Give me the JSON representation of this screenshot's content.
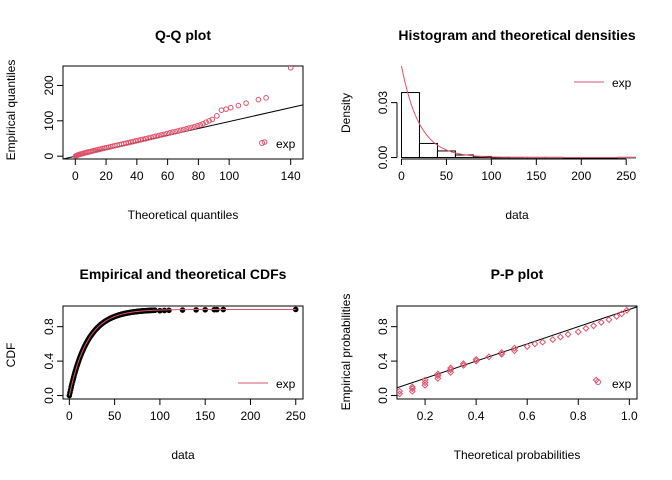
{
  "colors": {
    "theoretical": "#DF536B",
    "empirical": "#000000",
    "background": "#FFFFFF"
  },
  "chart_data": [
    {
      "id": "qq",
      "type": "scatter",
      "title": "Q-Q plot",
      "xlabel": "Theoretical quantiles",
      "ylabel": "Empirical quantiles",
      "xlim": [
        -8,
        148
      ],
      "ylim": [
        -8,
        255
      ],
      "xticks": [
        0,
        20,
        40,
        60,
        80,
        100,
        140
      ],
      "yticks": [
        0,
        100,
        200
      ],
      "legend": {
        "position": "bottom-right",
        "entries": [
          "exp"
        ],
        "symbol": "circle"
      },
      "reference_line": {
        "from": [
          -8,
          -8
        ],
        "to": [
          148,
          145
        ]
      },
      "points": [
        [
          0.2,
          0.5
        ],
        [
          0.7,
          1.5
        ],
        [
          1.2,
          2.5
        ],
        [
          1.8,
          3.5
        ],
        [
          2.5,
          4.5
        ],
        [
          3.2,
          5.5
        ],
        [
          4,
          6.5
        ],
        [
          4.8,
          7.5
        ],
        [
          5.6,
          8.5
        ],
        [
          6.5,
          9.5
        ],
        [
          7.4,
          10.5
        ],
        [
          8.3,
          11.5
        ],
        [
          9.2,
          12.5
        ],
        [
          10.2,
          13.5
        ],
        [
          11.2,
          14.5
        ],
        [
          12.2,
          15.7
        ],
        [
          13.3,
          16.8
        ],
        [
          14.4,
          18
        ],
        [
          15.6,
          19.3
        ],
        [
          16.8,
          20.5
        ],
        [
          18,
          21.8
        ],
        [
          19.2,
          23
        ],
        [
          20.5,
          24.2
        ],
        [
          21.8,
          25.5
        ],
        [
          23.1,
          26.8
        ],
        [
          24.4,
          28.2
        ],
        [
          25.8,
          29.6
        ],
        [
          27.2,
          31
        ],
        [
          28.6,
          32.4
        ],
        [
          30,
          33.8
        ],
        [
          31.5,
          35.3
        ],
        [
          33,
          36.8
        ],
        [
          34.5,
          38.3
        ],
        [
          36,
          39.8
        ],
        [
          37.6,
          41.4
        ],
        [
          39.2,
          43
        ],
        [
          40.8,
          44.6
        ],
        [
          42.4,
          46.2
        ],
        [
          44,
          47.8
        ],
        [
          45.7,
          49.5
        ],
        [
          47.4,
          51.2
        ],
        [
          49.1,
          53
        ],
        [
          50.8,
          54.8
        ],
        [
          52.5,
          56.6
        ],
        [
          54.2,
          58.4
        ],
        [
          56,
          60.2
        ],
        [
          57.8,
          62
        ],
        [
          59.6,
          63.9
        ],
        [
          61.4,
          65.8
        ],
        [
          63.2,
          67.7
        ],
        [
          65,
          69.6
        ],
        [
          66.8,
          71.5
        ],
        [
          68.6,
          73.4
        ],
        [
          70.4,
          75.4
        ],
        [
          72.2,
          77.4
        ],
        [
          74,
          79.4
        ],
        [
          75.8,
          81.4
        ],
        [
          77.6,
          83.5
        ],
        [
          79.4,
          86
        ],
        [
          81.2,
          88.5
        ],
        [
          83,
          92
        ],
        [
          85,
          96
        ],
        [
          87,
          100
        ],
        [
          89,
          104
        ],
        [
          92,
          114
        ],
        [
          95,
          130
        ],
        [
          98,
          133
        ],
        [
          101,
          137
        ],
        [
          106,
          143
        ],
        [
          111,
          150
        ],
        [
          119,
          160
        ],
        [
          124,
          165
        ],
        [
          140,
          250
        ],
        [
          123,
          40
        ]
      ]
    },
    {
      "id": "hist",
      "type": "bar",
      "title": "Histogram and theoretical densities",
      "xlabel": "data",
      "ylabel": "Density",
      "xlim": [
        -5,
        262
      ],
      "ylim": [
        -0.0008,
        0.05
      ],
      "xticks": [
        0,
        50,
        100,
        150,
        200,
        250
      ],
      "yticks": [
        0.0,
        0.03
      ],
      "ytick_labels": [
        "0.00",
        "0.03"
      ],
      "legend": {
        "position": "top-right",
        "entries": [
          "exp"
        ],
        "symbol": "line"
      },
      "bins": [
        {
          "from": 0,
          "to": 20,
          "density": 0.0355
        },
        {
          "from": 20,
          "to": 40,
          "density": 0.0077
        },
        {
          "from": 40,
          "to": 60,
          "density": 0.0036
        },
        {
          "from": 60,
          "to": 80,
          "density": 0.0014
        },
        {
          "from": 80,
          "to": 100,
          "density": 0.0006
        },
        {
          "from": 100,
          "to": 120,
          "density": 0.0001
        },
        {
          "from": 120,
          "to": 140,
          "density": 0.0001
        },
        {
          "from": 140,
          "to": 160,
          "density": 0.0001
        },
        {
          "from": 160,
          "to": 180,
          "density": 0.0001
        },
        {
          "from": 180,
          "to": 200,
          "density": 0.0
        },
        {
          "from": 200,
          "to": 220,
          "density": 0.0
        },
        {
          "from": 220,
          "to": 240,
          "density": 0.0
        },
        {
          "from": 240,
          "to": 260,
          "density": 0.0001
        }
      ],
      "density_curve": {
        "distribution": "exp",
        "rate": 0.05,
        "x_range": [
          0,
          260
        ]
      }
    },
    {
      "id": "cdf",
      "type": "line",
      "title": "Empirical and theoretical CDFs",
      "xlabel": "data",
      "ylabel": "CDF",
      "xlim": [
        -7,
        258
      ],
      "ylim": [
        -0.04,
        1.04
      ],
      "xticks": [
        0,
        50,
        100,
        150,
        200,
        250
      ],
      "yticks": [
        0.0,
        0.4,
        0.8
      ],
      "ytick_labels": [
        "0.0",
        "0.4",
        "0.8"
      ],
      "legend": {
        "position": "bottom-right",
        "entries": [
          "exp"
        ],
        "symbol": "line"
      },
      "theoretical": {
        "distribution": "exp",
        "rate": 0.05,
        "x_range": [
          0,
          250
        ]
      },
      "empirical_dense_range": [
        0,
        95
      ],
      "empirical_outliers": [
        [
          100,
          0.985
        ],
        [
          105,
          0.988
        ],
        [
          110,
          0.99
        ],
        [
          125,
          0.993
        ],
        [
          140,
          0.995
        ],
        [
          150,
          0.996
        ],
        [
          160,
          0.997
        ],
        [
          163,
          0.998
        ],
        [
          170,
          0.999
        ],
        [
          250,
          1.0
        ]
      ]
    },
    {
      "id": "pp",
      "type": "scatter",
      "title": "P-P plot",
      "xlabel": "Theoretical probabilities",
      "ylabel": "Empirical probabilities",
      "xlim": [
        0.09,
        1.03
      ],
      "ylim": [
        -0.04,
        1.04
      ],
      "xticks": [
        0.2,
        0.4,
        0.6,
        0.8,
        1.0
      ],
      "xtick_labels": [
        "0.2",
        "0.4",
        "0.6",
        "0.8",
        "1.0"
      ],
      "yticks": [
        0.0,
        0.4,
        0.8
      ],
      "ytick_labels": [
        "0.0",
        "0.4",
        "0.8"
      ],
      "legend": {
        "position": "bottom-right",
        "entries": [
          "exp"
        ],
        "symbol": "circle"
      },
      "reference_line": {
        "from": [
          0.09,
          0.09
        ],
        "to": [
          1.03,
          1.03
        ]
      },
      "points": [
        [
          0.1,
          0.02
        ],
        [
          0.1,
          0.05
        ],
        [
          0.15,
          0.05
        ],
        [
          0.15,
          0.08
        ],
        [
          0.15,
          0.1
        ],
        [
          0.2,
          0.12
        ],
        [
          0.2,
          0.15
        ],
        [
          0.2,
          0.18
        ],
        [
          0.25,
          0.2
        ],
        [
          0.25,
          0.23
        ],
        [
          0.25,
          0.25
        ],
        [
          0.3,
          0.27
        ],
        [
          0.3,
          0.3
        ],
        [
          0.3,
          0.32
        ],
        [
          0.35,
          0.35
        ],
        [
          0.35,
          0.37
        ],
        [
          0.4,
          0.4
        ],
        [
          0.4,
          0.42
        ],
        [
          0.45,
          0.45
        ],
        [
          0.5,
          0.48
        ],
        [
          0.5,
          0.5
        ],
        [
          0.55,
          0.52
        ],
        [
          0.55,
          0.55
        ],
        [
          0.6,
          0.57
        ],
        [
          0.63,
          0.6
        ],
        [
          0.66,
          0.62
        ],
        [
          0.7,
          0.65
        ],
        [
          0.73,
          0.68
        ],
        [
          0.76,
          0.71
        ],
        [
          0.8,
          0.74
        ],
        [
          0.83,
          0.78
        ],
        [
          0.86,
          0.81
        ],
        [
          0.89,
          0.85
        ],
        [
          0.92,
          0.88
        ],
        [
          0.95,
          0.92
        ],
        [
          0.97,
          0.95
        ],
        [
          0.99,
          0.99
        ],
        [
          0.87,
          0.18
        ]
      ]
    }
  ]
}
